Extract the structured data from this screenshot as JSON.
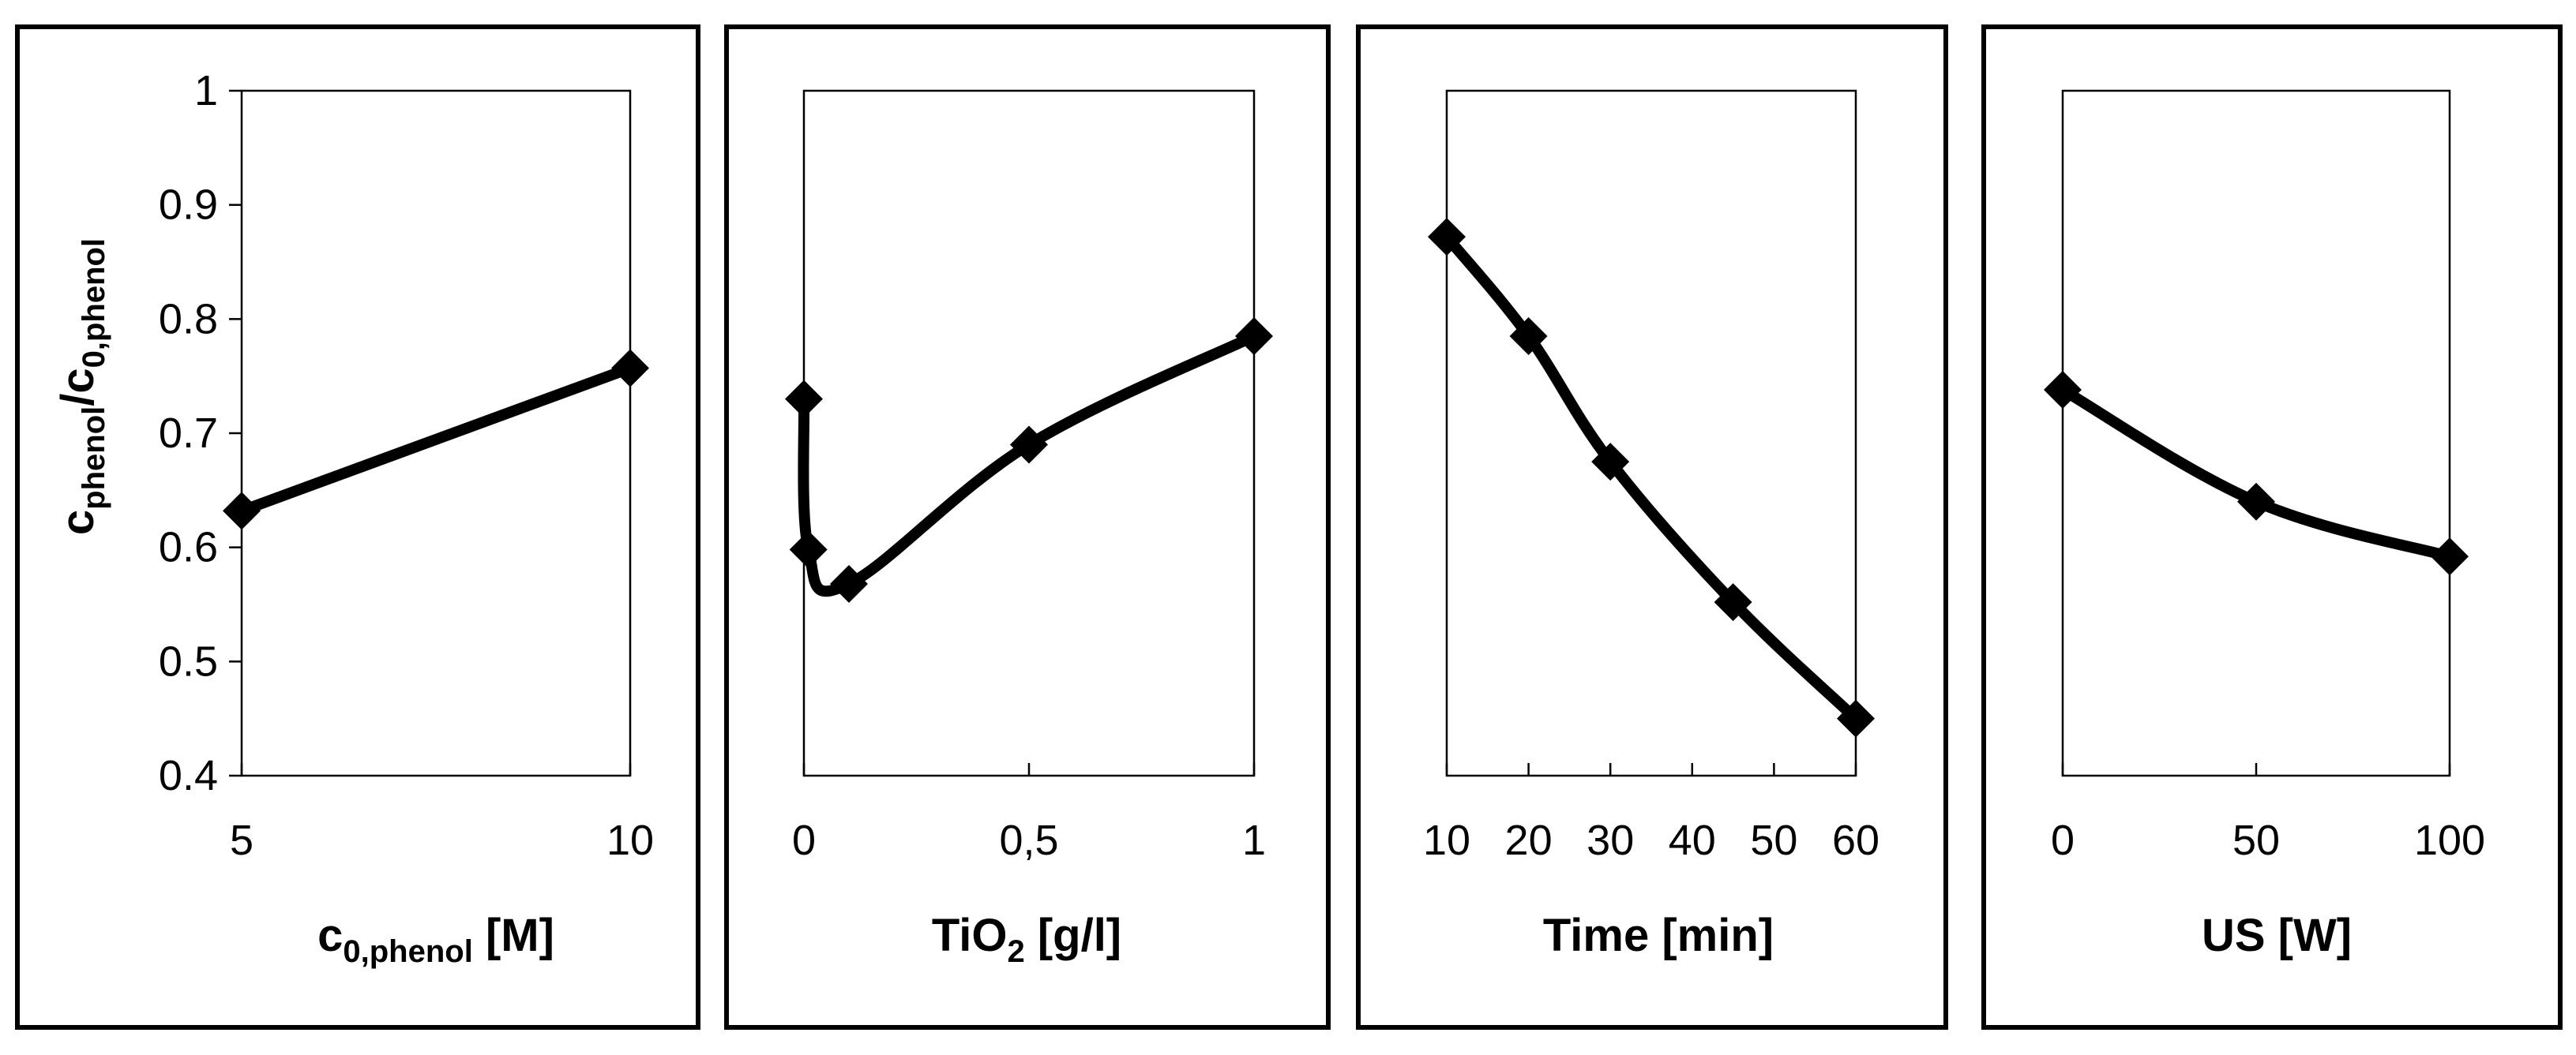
{
  "chart_data": [
    {
      "type": "line",
      "ylabel": "c_phenol/c_0,phenol",
      "ylabel_main": "c",
      "ylabel_sub": "phenol",
      "ylabel_slash": "/c",
      "ylabel_sub2": "0,phenol",
      "xlabel_main": "c",
      "xlabel_sub": "0,phenol",
      "xlabel_unit": " [M]",
      "ylim": [
        0.4,
        1.0
      ],
      "yticks": [
        0.4,
        0.5,
        0.6,
        0.7,
        0.8,
        0.9,
        1.0
      ],
      "ytick_labels": [
        "0.4",
        "0.5",
        "0.6",
        "0.7",
        "0.8",
        "0.9",
        "1"
      ],
      "xlim": [
        5,
        10
      ],
      "xticks": [
        5,
        10
      ],
      "xtick_labels": [
        "5",
        "10"
      ],
      "x": [
        5,
        10
      ],
      "y": [
        0.632,
        0.757
      ]
    },
    {
      "type": "line",
      "xlabel_main": "TiO",
      "xlabel_sub": "2",
      "xlabel_unit": " [g/l]",
      "ylim": [
        0.4,
        1.0
      ],
      "xlim": [
        0,
        1
      ],
      "xticks": [
        0,
        0.5,
        1
      ],
      "xtick_labels": [
        "0",
        "0,5",
        "1"
      ],
      "x": [
        0,
        0.01,
        0.1,
        0.5,
        1.0
      ],
      "y": [
        0.73,
        0.598,
        0.568,
        0.69,
        0.785
      ]
    },
    {
      "type": "line",
      "xlabel_main": "Time [min]",
      "ylim": [
        0.4,
        1.0
      ],
      "xlim": [
        10,
        60
      ],
      "xticks": [
        10,
        20,
        30,
        40,
        50,
        60
      ],
      "xtick_labels": [
        "10",
        "20",
        "30",
        "40",
        "50",
        "60"
      ],
      "x": [
        10,
        20,
        30,
        45,
        60
      ],
      "y": [
        0.872,
        0.785,
        0.675,
        0.552,
        0.45
      ]
    },
    {
      "type": "line",
      "xlabel_main": "US [W]",
      "ylim": [
        0.4,
        1.0
      ],
      "xlim": [
        0,
        100
      ],
      "xticks": [
        0,
        50,
        100
      ],
      "xtick_labels": [
        "0",
        "50",
        "100"
      ],
      "x": [
        0,
        50,
        100
      ],
      "y": [
        0.738,
        0.64,
        0.592
      ]
    }
  ]
}
